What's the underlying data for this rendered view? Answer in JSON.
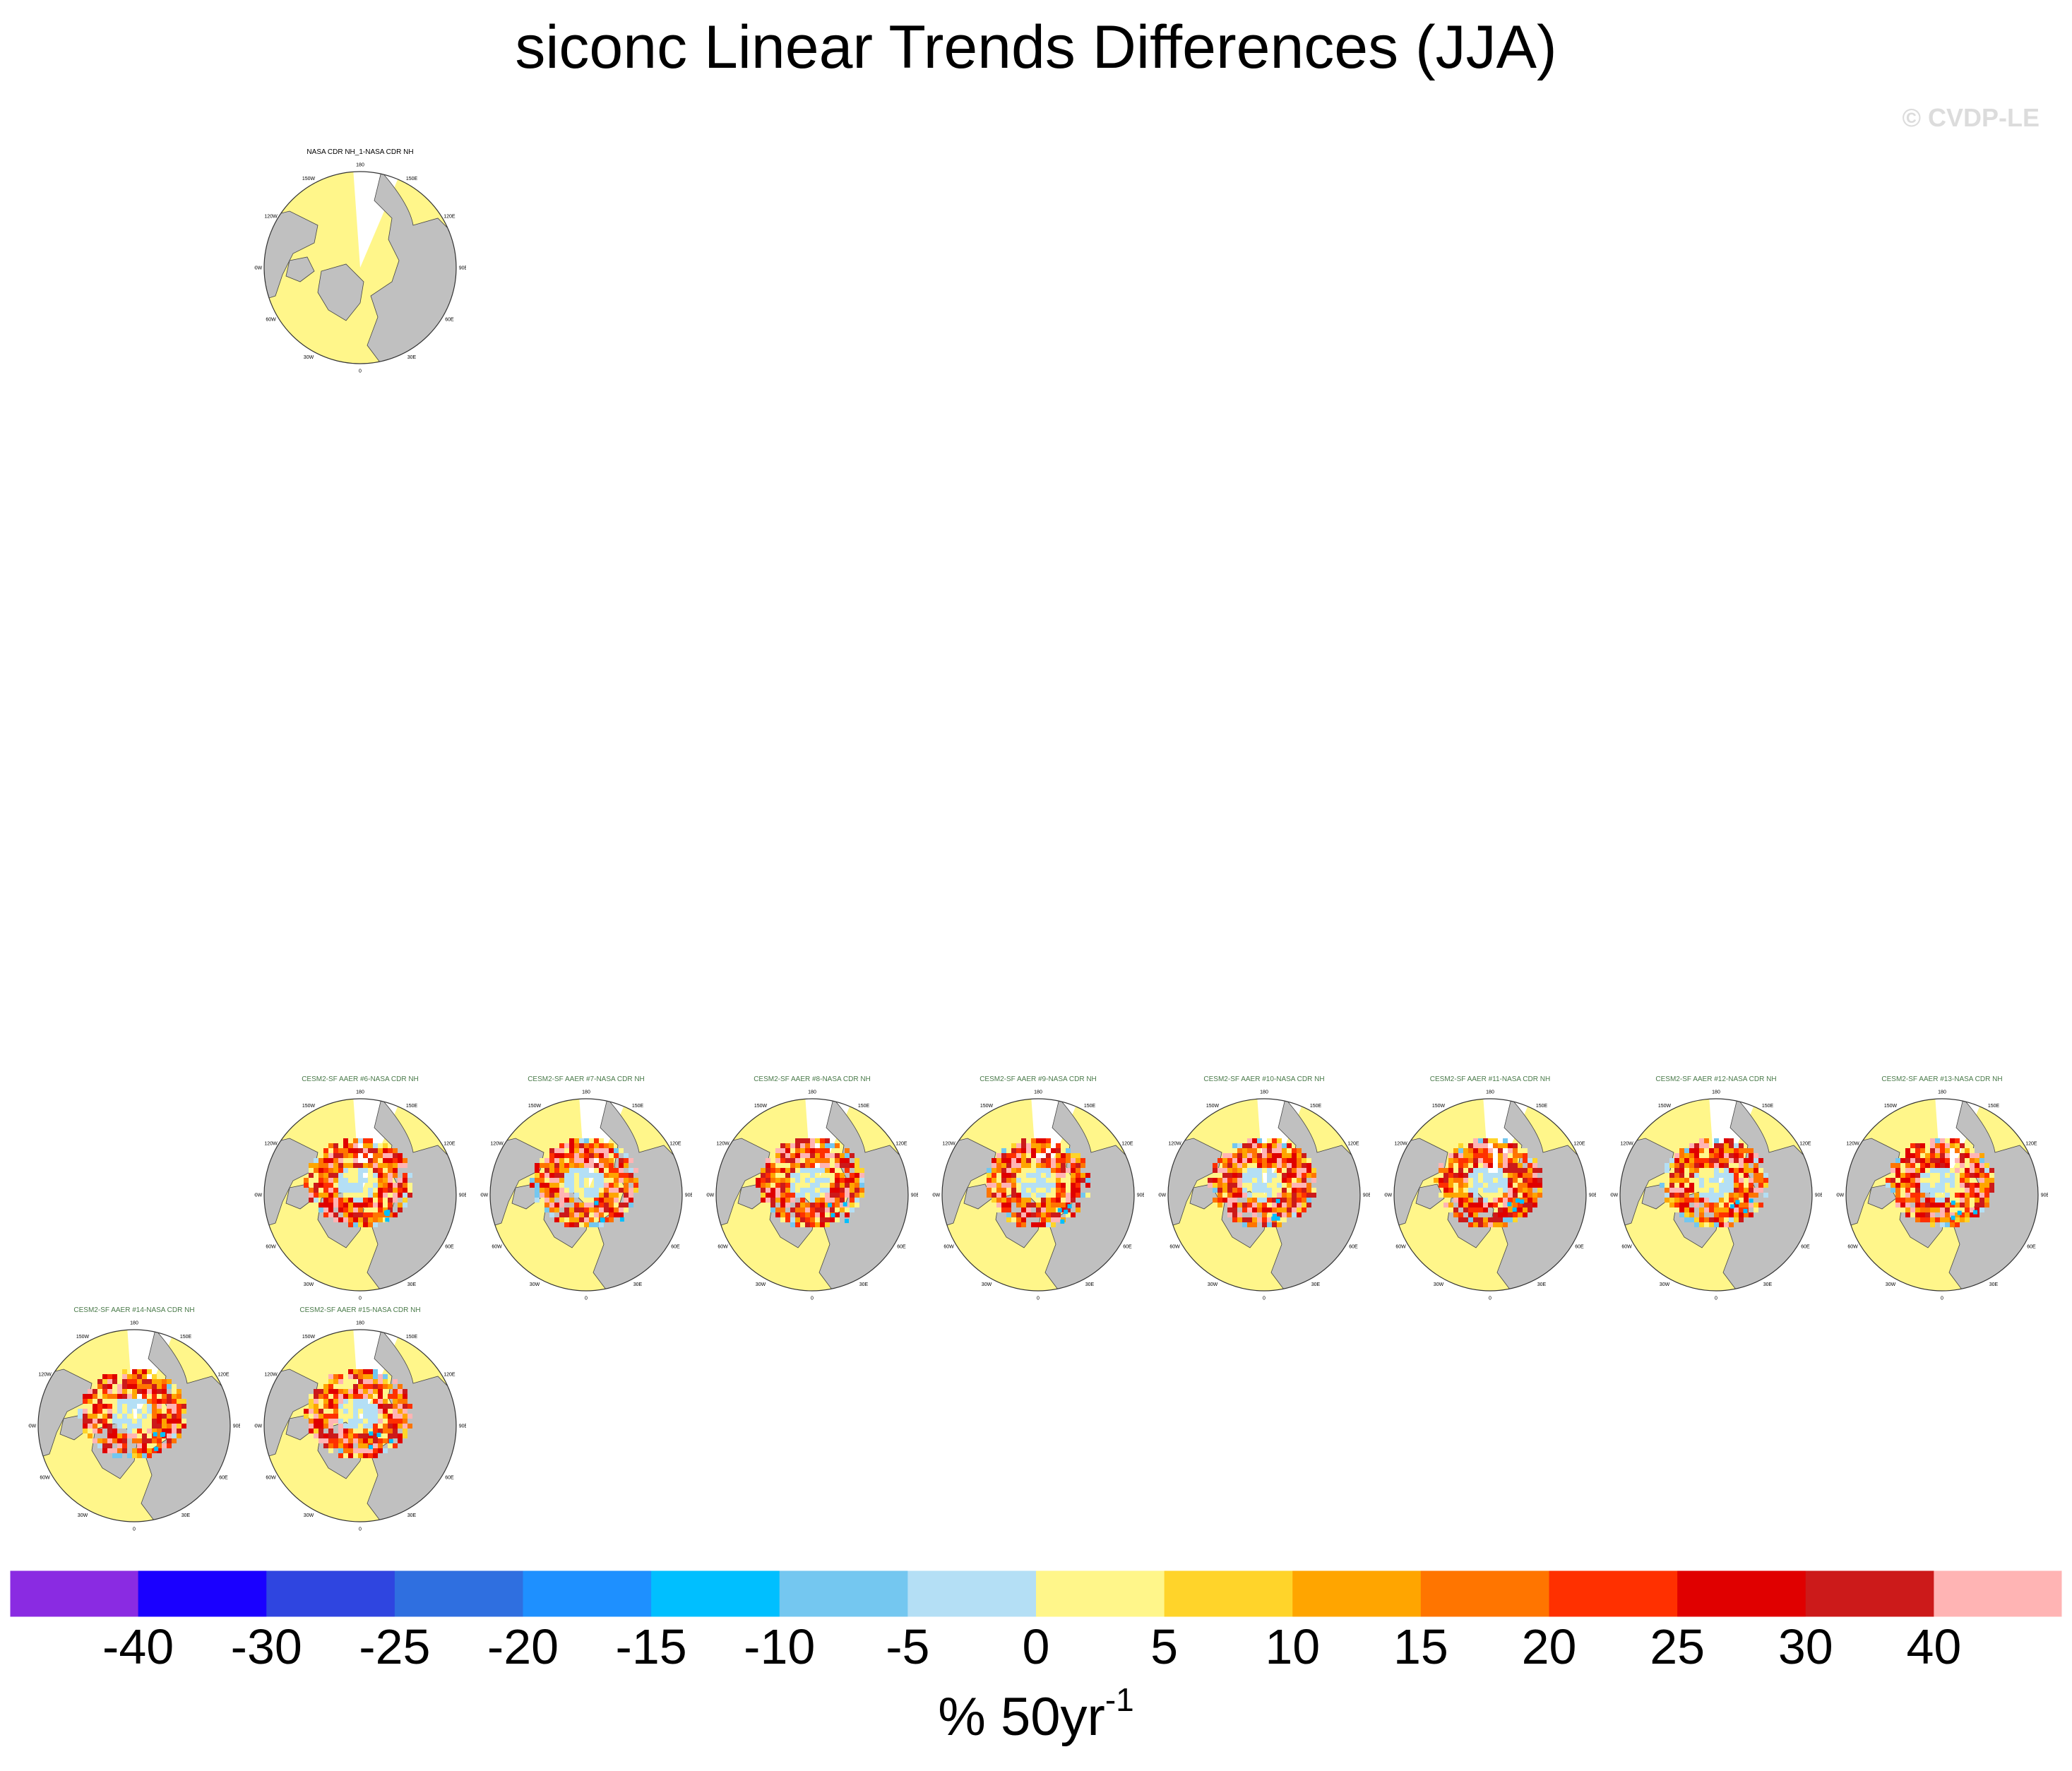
{
  "title": "siconc Linear Trends Differences (JJA)",
  "copyright": "© CVDP-LE",
  "colorbar": {
    "unit_main": "% 50yr",
    "unit_sup": "-1",
    "tick_labels": [
      "-40",
      "-30",
      "-25",
      "-20",
      "-15",
      "-10",
      "-5",
      "0",
      "5",
      "10",
      "15",
      "20",
      "25",
      "30",
      "40"
    ],
    "colors": [
      "#8a2be2",
      "#1a00ff",
      "#2f45e0",
      "#2f6fe0",
      "#1e90ff",
      "#00bfff",
      "#74c7f0",
      "#b4dff5",
      "#fff68a",
      "#ffd42a",
      "#ffa500",
      "#ff7500",
      "#ff3000",
      "#e00000",
      "#cc1a1a",
      "#ffb4b4"
    ]
  },
  "map": {
    "lon_labels": [
      "180",
      "150E",
      "120E",
      "90E",
      "60E",
      "30E",
      "0",
      "30W",
      "60W",
      "90W",
      "120W",
      "150W"
    ],
    "land_color": "#c0c0c0",
    "ocean_color": "#fff68a"
  },
  "panels": [
    {
      "id": "obs",
      "title": "NASA CDR NH_1-NASA CDR NH",
      "kind": "obs"
    },
    {
      "id": "m6",
      "title": "CESM2-SF AAER #6-NASA CDR NH",
      "kind": "model"
    },
    {
      "id": "m7",
      "title": "CESM2-SF AAER #7-NASA CDR NH",
      "kind": "model"
    },
    {
      "id": "m8",
      "title": "CESM2-SF AAER #8-NASA CDR NH",
      "kind": "model"
    },
    {
      "id": "m9",
      "title": "CESM2-SF AAER #9-NASA CDR NH",
      "kind": "model"
    },
    {
      "id": "m10",
      "title": "CESM2-SF AAER #10-NASA CDR NH",
      "kind": "model"
    },
    {
      "id": "m11",
      "title": "CESM2-SF AAER #11-NASA CDR NH",
      "kind": "model"
    },
    {
      "id": "m12",
      "title": "CESM2-SF AAER #12-NASA CDR NH",
      "kind": "model"
    },
    {
      "id": "m13",
      "title": "CESM2-SF AAER #13-NASA CDR NH",
      "kind": "model"
    },
    {
      "id": "m14",
      "title": "CESM2-SF AAER #14-NASA CDR NH",
      "kind": "model"
    },
    {
      "id": "m15",
      "title": "CESM2-SF AAER #15-NASA CDR NH",
      "kind": "model"
    }
  ],
  "chart_data": {
    "type": "heatmap",
    "title": "siconc Linear Trends Differences (JJA)",
    "projection": "north polar stereographic",
    "season": "JJA",
    "contour_levels": [
      -40,
      -30,
      -25,
      -20,
      -15,
      -10,
      -5,
      0,
      5,
      10,
      15,
      20,
      25,
      30,
      40
    ],
    "colorbar_label": "% 50yr-1"
  }
}
